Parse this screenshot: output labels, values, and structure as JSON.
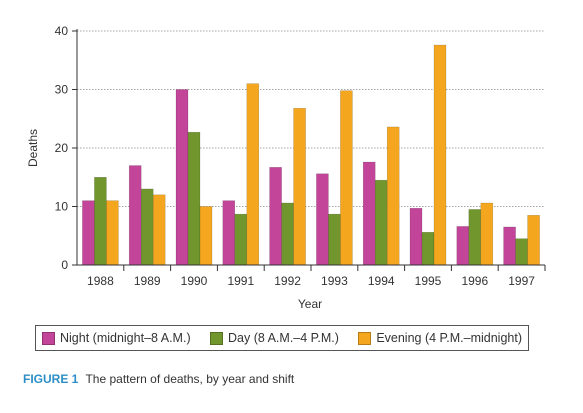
{
  "chart_data": {
    "type": "bar",
    "categories": [
      "1988",
      "1989",
      "1990",
      "1991",
      "1992",
      "1993",
      "1994",
      "1995",
      "1996",
      "1997"
    ],
    "series": [
      {
        "name": "Night (midnight–8 A.M.)",
        "color": "#c2459a",
        "values": [
          11,
          17,
          30,
          11,
          16.7,
          15.6,
          17.6,
          9.7,
          6.6,
          6.5
        ]
      },
      {
        "name": "Day (8 A.M.–4 P.M.)",
        "color": "#72962e",
        "values": [
          15,
          13,
          22.7,
          8.7,
          10.6,
          8.7,
          14.5,
          5.6,
          9.5,
          4.5
        ]
      },
      {
        "name": "Evening (4 P.M.–midnight)",
        "color": "#f4a61f",
        "values": [
          11,
          12,
          10,
          31,
          26.8,
          29.8,
          23.6,
          37.6,
          10.6,
          8.5
        ]
      }
    ],
    "xlabel": "Year",
    "ylabel": "Deaths",
    "ylim": [
      0,
      40
    ],
    "yticks": [
      0,
      10,
      20,
      30,
      40
    ],
    "grid": true,
    "legend_position": "bottom"
  },
  "caption": {
    "label": "FIGURE 1",
    "text": "The pattern of deaths, by year and shift"
  }
}
